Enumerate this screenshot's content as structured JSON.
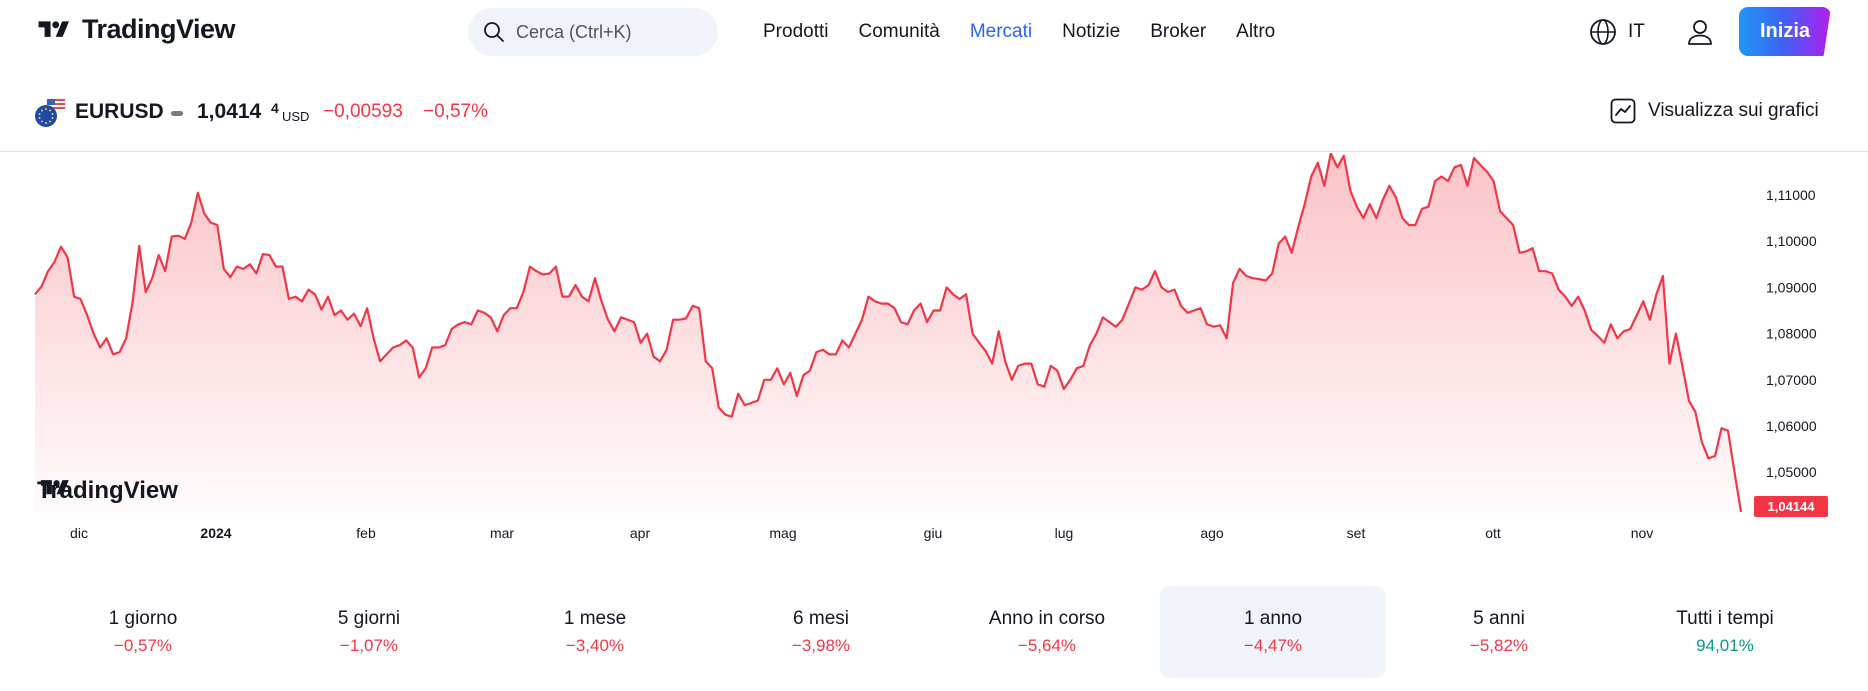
{
  "brand": {
    "name": "TradingView"
  },
  "header": {
    "search_placeholder": "Cerca (Ctrl+K)",
    "nav": [
      {
        "label": "Prodotti",
        "active": false
      },
      {
        "label": "Comunità",
        "active": false
      },
      {
        "label": "Mercati",
        "active": true
      },
      {
        "label": "Notizie",
        "active": false
      },
      {
        "label": "Broker",
        "active": false
      },
      {
        "label": "Altro",
        "active": false
      }
    ],
    "language": "IT",
    "cta_label": "Inizia"
  },
  "symbol": {
    "name": "EURUSD",
    "price": "1,0414",
    "price_sup": "4",
    "currency": "USD",
    "change": "−0,00593",
    "change_pct": "−0,57%",
    "view_label": "Visualizza sui grafici"
  },
  "colors": {
    "accent": "#2962ff",
    "negative": "#f23645",
    "positive": "#089981",
    "line": "#f23645"
  },
  "chart_data": {
    "type": "area",
    "y_ticks": [
      "1,11000",
      "1,10000",
      "1,09000",
      "1,08000",
      "1,07000",
      "1,06000",
      "1,05000"
    ],
    "x_ticks": [
      "dic",
      "2024",
      "feb",
      "mar",
      "apr",
      "mag",
      "giu",
      "lug",
      "ago",
      "set",
      "ott",
      "nov"
    ],
    "ylim": [
      1.04,
      1.12
    ],
    "last_value_label": "1,04144",
    "values": [
      1.0885,
      1.0902,
      1.0935,
      1.0955,
      1.0988,
      1.0965,
      1.088,
      1.0875,
      1.084,
      1.08,
      1.077,
      1.079,
      1.0755,
      1.076,
      1.079,
      1.087,
      1.099,
      1.089,
      1.092,
      1.097,
      1.0935,
      1.101,
      1.1012,
      1.1005,
      1.104,
      1.1105,
      1.106,
      1.104,
      1.1035,
      1.094,
      1.0922,
      1.0945,
      1.094,
      1.095,
      1.093,
      1.0972,
      1.097,
      1.0945,
      1.0945,
      1.0875,
      1.088,
      1.087,
      1.0895,
      1.0885,
      1.0852,
      1.088,
      1.084,
      1.085,
      1.083,
      1.0843,
      1.0816,
      1.0855,
      1.079,
      1.074,
      1.0755,
      1.077,
      1.0775,
      1.0785,
      1.077,
      1.0705,
      1.0725,
      1.077,
      1.077,
      1.0775,
      1.081,
      1.082,
      1.0825,
      1.082,
      1.085,
      1.0845,
      1.0835,
      1.0805,
      1.084,
      1.0855,
      1.0855,
      1.089,
      1.0945,
      1.0935,
      1.0928,
      1.093,
      1.0945,
      1.088,
      1.088,
      1.0905,
      1.088,
      1.087,
      1.092,
      1.087,
      1.083,
      1.0805,
      1.0835,
      1.083,
      1.0825,
      1.078,
      1.08,
      1.075,
      1.074,
      1.0765,
      1.083,
      1.083,
      1.0833,
      1.086,
      1.0855,
      1.074,
      1.0725,
      1.064,
      1.0625,
      1.062,
      1.067,
      1.0645,
      1.065,
      1.0655,
      1.07,
      1.07,
      1.0725,
      1.069,
      1.0715,
      1.0665,
      1.071,
      1.072,
      1.076,
      1.0765,
      1.0755,
      1.0755,
      1.0785,
      1.077,
      1.08,
      1.083,
      1.088,
      1.087,
      1.0865,
      1.0865,
      1.0855,
      1.0825,
      1.082,
      1.085,
      1.0865,
      1.0825,
      1.085,
      1.085,
      1.09,
      1.0885,
      1.0875,
      1.0885,
      1.08,
      1.078,
      1.0762,
      1.0735,
      1.0805,
      1.074,
      1.07,
      1.073,
      1.0735,
      1.0735,
      1.069,
      1.0685,
      1.073,
      1.072,
      1.068,
      1.07,
      1.0725,
      1.073,
      1.0775,
      1.08,
      1.0835,
      1.0825,
      1.0815,
      1.083,
      1.0865,
      1.09,
      1.0895,
      1.0905,
      1.0935,
      1.09,
      1.089,
      1.0895,
      1.086,
      1.0845,
      1.085,
      1.0855,
      1.082,
      1.0815,
      1.0818,
      1.079,
      1.091,
      1.094,
      1.0925,
      1.092,
      1.0918,
      1.0915,
      1.093,
      1.0995,
      1.101,
      1.0975,
      1.103,
      1.108,
      1.114,
      1.117,
      1.112,
      1.119,
      1.116,
      1.1185,
      1.111,
      1.1075,
      1.105,
      1.108,
      1.105,
      1.109,
      1.112,
      1.1095,
      1.105,
      1.1035,
      1.1035,
      1.107,
      1.1075,
      1.113,
      1.114,
      1.113,
      1.116,
      1.1165,
      1.112,
      1.118,
      1.1165,
      1.115,
      1.113,
      1.1065,
      1.105,
      1.1035,
      1.0975,
      1.0978,
      1.0985,
      1.0935,
      1.0935,
      1.093,
      1.0895,
      1.088,
      1.086,
      1.088,
      1.085,
      1.0808,
      1.0795,
      1.078,
      1.082,
      1.079,
      1.0805,
      1.081,
      1.084,
      1.087,
      1.083,
      1.0885,
      1.0925,
      1.0735,
      1.08,
      1.073,
      1.0655,
      1.063,
      1.0565,
      1.053,
      1.0535,
      1.0595,
      1.059,
      1.05,
      1.0414
    ]
  },
  "periods": [
    {
      "label": "1 giorno",
      "value": "−0,57%",
      "positive": false,
      "active": false
    },
    {
      "label": "5 giorni",
      "value": "−1,07%",
      "positive": false,
      "active": false
    },
    {
      "label": "1 mese",
      "value": "−3,40%",
      "positive": false,
      "active": false
    },
    {
      "label": "6 mesi",
      "value": "−3,98%",
      "positive": false,
      "active": false
    },
    {
      "label": "Anno in corso",
      "value": "−5,64%",
      "positive": false,
      "active": false
    },
    {
      "label": "1 anno",
      "value": "−4,47%",
      "positive": false,
      "active": true
    },
    {
      "label": "5 anni",
      "value": "−5,82%",
      "positive": false,
      "active": false
    },
    {
      "label": "Tutti i tempi",
      "value": "94,01%",
      "positive": true,
      "active": false
    }
  ]
}
